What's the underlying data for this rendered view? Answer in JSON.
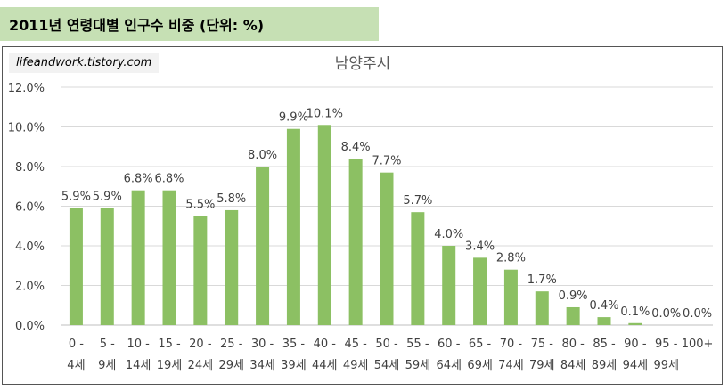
{
  "header": {
    "title": "2011년 연령대별 인구수 비중 (단위: %)"
  },
  "watermark": "lifeandwork.tistory.com",
  "colors": {
    "bar": "#8cc063",
    "banner": "#c6e0b4",
    "grid": "#d9d9d9"
  },
  "chart_data": {
    "type": "bar",
    "title": "남양주시",
    "xlabel": "",
    "ylabel": "",
    "ylim": [
      0,
      12
    ],
    "yticks": [
      "0.0%",
      "2.0%",
      "4.0%",
      "6.0%",
      "8.0%",
      "10.0%",
      "12.0%"
    ],
    "grid": true,
    "categories": [
      [
        "0 -",
        "4세"
      ],
      [
        "5 -",
        "9세"
      ],
      [
        "10 -",
        "14세"
      ],
      [
        "15 -",
        "19세"
      ],
      [
        "20 -",
        "24세"
      ],
      [
        "25 -",
        "29세"
      ],
      [
        "30 -",
        "34세"
      ],
      [
        "35 -",
        "39세"
      ],
      [
        "40 -",
        "44세"
      ],
      [
        "45 -",
        "49세"
      ],
      [
        "50 -",
        "54세"
      ],
      [
        "55 -",
        "59세"
      ],
      [
        "60 -",
        "64세"
      ],
      [
        "65 -",
        "69세"
      ],
      [
        "70 -",
        "74세"
      ],
      [
        "75 -",
        "79세"
      ],
      [
        "80 -",
        "84세"
      ],
      [
        "85 -",
        "89세"
      ],
      [
        "90 -",
        "94세"
      ],
      [
        "95 -",
        "99세"
      ],
      [
        "100+",
        ""
      ]
    ],
    "values": [
      5.9,
      5.9,
      6.8,
      6.8,
      5.5,
      5.8,
      8.0,
      9.9,
      10.1,
      8.4,
      7.7,
      5.7,
      4.0,
      3.4,
      2.8,
      1.7,
      0.9,
      0.4,
      0.1,
      0.0,
      0.0
    ],
    "data_labels": [
      "5.9%",
      "5.9%",
      "6.8%",
      "6.8%",
      "5.5%",
      "5.8%",
      "8.0%",
      "9.9%",
      "10.1%",
      "8.4%",
      "7.7%",
      "5.7%",
      "4.0%",
      "3.4%",
      "2.8%",
      "1.7%",
      "0.9%",
      "0.4%",
      "0.1%",
      "0.0%",
      "0.0%"
    ]
  }
}
